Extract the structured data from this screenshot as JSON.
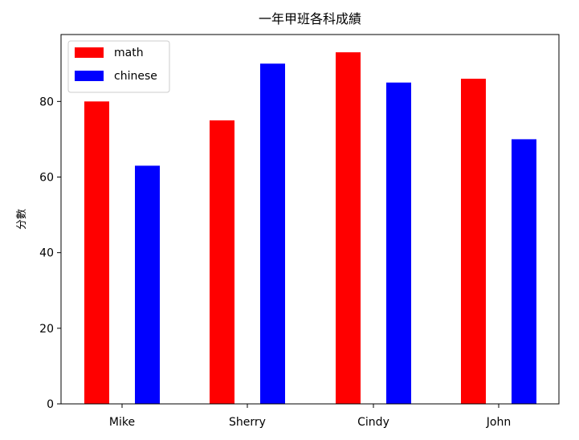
{
  "chart_data": {
    "type": "bar",
    "title": "一年甲班各科成績",
    "xlabel": "",
    "ylabel": "分數",
    "categories": [
      "Mike",
      "Sherry",
      "Cindy",
      "John"
    ],
    "series": [
      {
        "name": "math",
        "color": "#ff0000",
        "values": [
          80,
          75,
          93,
          86
        ]
      },
      {
        "name": "chinese",
        "color": "#0000ff",
        "values": [
          63,
          90,
          85,
          70
        ]
      }
    ],
    "yticks": [
      "0",
      "20",
      "40",
      "60",
      "80"
    ],
    "ylim": [
      0,
      97.7
    ],
    "legend_position": "top-left",
    "grid": false
  }
}
